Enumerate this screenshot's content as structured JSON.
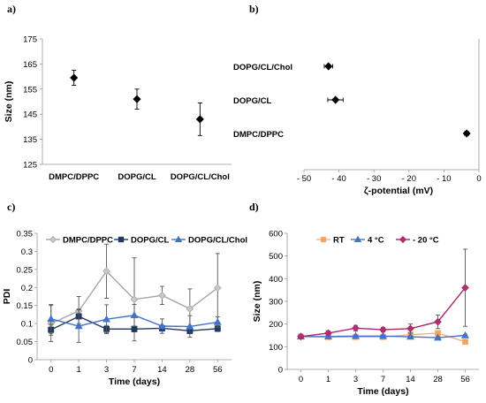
{
  "figure": {
    "panels": [
      "a)",
      "b)",
      "c)",
      "d)"
    ]
  },
  "chart_data": [
    {
      "panel": "a)",
      "type": "scatter",
      "categories": [
        "DMPC/DPPC",
        "DOPG/CL",
        "DOPG/CL/Chol"
      ],
      "values": [
        159.5,
        151,
        143
      ],
      "errors": [
        3,
        4,
        6.5
      ],
      "ylabel": "Size (nm)",
      "xlabel": "",
      "ylim": [
        125,
        175
      ],
      "yticks": [
        125,
        135,
        145,
        155,
        165,
        175
      ],
      "marker": "diamond",
      "color": "#000000",
      "grid": false
    },
    {
      "panel": "b)",
      "type": "scatter",
      "categories": [
        "DOPG/CL/Chol",
        "DOPG/CL",
        "DMPC/DPPC"
      ],
      "values": [
        -43,
        -41,
        -3.5
      ],
      "errors": [
        1.2,
        2.2,
        0.6
      ],
      "xlabel": "ζ-potential (mV)",
      "ylabel": "",
      "xlim": [
        -50,
        0
      ],
      "xticks": [
        -50,
        -40,
        -30,
        -20,
        -10,
        0
      ],
      "xtick_labels": [
        "- 50",
        "- 40",
        "- 30",
        "- 20",
        "- 10",
        "0"
      ],
      "marker": "diamond",
      "color": "#000000",
      "grid": false
    },
    {
      "panel": "c)",
      "type": "line",
      "categories": [
        "0",
        "1",
        "3",
        "7",
        "14",
        "28",
        "56"
      ],
      "xlabel": "Time (days)",
      "ylabel": "PDI",
      "ylim": [
        0,
        0.35
      ],
      "yticks": [
        "0",
        "0.05",
        "0.1",
        "0.15",
        "0.2",
        "0.25",
        "0.3",
        "0.35"
      ],
      "legend": "top",
      "series": [
        {
          "name": "DMPC/DPPC",
          "values": [
            0.1,
            0.135,
            0.245,
            0.167,
            0.178,
            0.141,
            0.199
          ],
          "errors": [
            0.05,
            0.04,
            0.075,
            0.115,
            0.025,
            0.055,
            0.095
          ],
          "color": "#a6a6a6",
          "marker": "diamond",
          "fill": "#c8c8c8"
        },
        {
          "name": "DOPG/CL",
          "values": [
            0.083,
            0.12,
            0.085,
            0.085,
            0.087,
            0.08,
            0.086
          ],
          "errors": [
            0.015,
            0.02,
            0.01,
            0.008,
            0.008,
            0.008,
            0.008
          ],
          "color": "#1f3864",
          "marker": "square",
          "fill": "#1f3864"
        },
        {
          "name": "DOPG/CL/Chol",
          "values": [
            0.113,
            0.093,
            0.112,
            0.123,
            0.093,
            0.092,
            0.104
          ],
          "errors": [
            0.04,
            0.045,
            0.04,
            0.03,
            0.02,
            0.03,
            0.015
          ],
          "color": "#4472c4",
          "marker": "triangle",
          "fill": "#4472c4"
        }
      ]
    },
    {
      "panel": "d)",
      "type": "line",
      "categories": [
        "0",
        "1",
        "3",
        "7",
        "14",
        "28",
        "56"
      ],
      "xlabel": "Time (days)",
      "ylabel": "Size (nm)",
      "ylim": [
        0,
        600
      ],
      "yticks": [
        "0",
        "100",
        "200",
        "300",
        "400",
        "500",
        "600"
      ],
      "legend": "top-left",
      "series": [
        {
          "name": "RT",
          "values": [
            145,
            143,
            143,
            143,
            153,
            160,
            122
          ],
          "errors": [
            4,
            4,
            4,
            4,
            6,
            6,
            6
          ],
          "color": "#f4b183",
          "marker": "square",
          "fill": "#f4a259"
        },
        {
          "name": "4 °C",
          "values": [
            145,
            145,
            147,
            147,
            144,
            140,
            150
          ],
          "errors": [
            4,
            4,
            4,
            4,
            4,
            4,
            4
          ],
          "color": "#4472c4",
          "marker": "triangle",
          "fill": "#4472c4"
        },
        {
          "name": "- 20 °C",
          "values": [
            145,
            160,
            182,
            175,
            180,
            210,
            360
          ],
          "errors": [
            8,
            10,
            12,
            10,
            20,
            30,
            170
          ],
          "color": "#a8286b",
          "marker": "diamond",
          "fill": "#b0306f"
        }
      ]
    }
  ]
}
